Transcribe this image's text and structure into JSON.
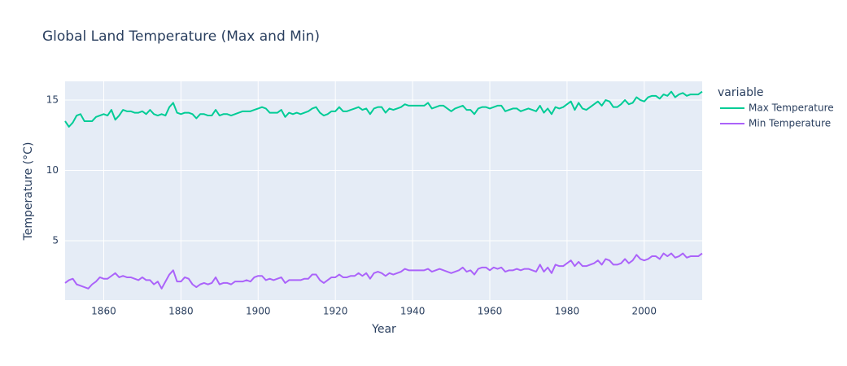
{
  "chart_data": {
    "type": "line",
    "title": "Global Land Temperature (Max and Min)",
    "x_label": "Year",
    "y_label": "Temperature (°C)",
    "legend_title": "variable",
    "x": [
      1850,
      1851,
      1852,
      1853,
      1854,
      1855,
      1856,
      1857,
      1858,
      1859,
      1860,
      1861,
      1862,
      1863,
      1864,
      1865,
      1866,
      1867,
      1868,
      1869,
      1870,
      1871,
      1872,
      1873,
      1874,
      1875,
      1876,
      1877,
      1878,
      1879,
      1880,
      1881,
      1882,
      1883,
      1884,
      1885,
      1886,
      1887,
      1888,
      1889,
      1890,
      1891,
      1892,
      1893,
      1894,
      1895,
      1896,
      1897,
      1898,
      1899,
      1900,
      1901,
      1902,
      1903,
      1904,
      1905,
      1906,
      1907,
      1908,
      1909,
      1910,
      1911,
      1912,
      1913,
      1914,
      1915,
      1916,
      1917,
      1918,
      1919,
      1920,
      1921,
      1922,
      1923,
      1924,
      1925,
      1926,
      1927,
      1928,
      1929,
      1930,
      1931,
      1932,
      1933,
      1934,
      1935,
      1936,
      1937,
      1938,
      1939,
      1940,
      1941,
      1942,
      1943,
      1944,
      1945,
      1946,
      1947,
      1948,
      1949,
      1950,
      1951,
      1952,
      1953,
      1954,
      1955,
      1956,
      1957,
      1958,
      1959,
      1960,
      1961,
      1962,
      1963,
      1964,
      1965,
      1966,
      1967,
      1968,
      1969,
      1970,
      1971,
      1972,
      1973,
      1974,
      1975,
      1976,
      1977,
      1978,
      1979,
      1980,
      1981,
      1982,
      1983,
      1984,
      1985,
      1986,
      1987,
      1988,
      1989,
      1990,
      1991,
      1992,
      1993,
      1994,
      1995,
      1996,
      1997,
      1998,
      1999,
      2000,
      2001,
      2002,
      2003,
      2004,
      2005,
      2006,
      2007,
      2008,
      2009,
      2010,
      2011,
      2012,
      2013,
      2014,
      2015
    ],
    "series": [
      {
        "name": "Max Temperature",
        "color": "#00cc96",
        "values": [
          13.5,
          13.1,
          13.4,
          13.9,
          14.0,
          13.5,
          13.5,
          13.5,
          13.8,
          13.9,
          14.0,
          13.9,
          14.3,
          13.6,
          13.9,
          14.3,
          14.2,
          14.2,
          14.1,
          14.1,
          14.2,
          14.0,
          14.3,
          14.0,
          13.9,
          14.0,
          13.9,
          14.5,
          14.8,
          14.1,
          14.0,
          14.1,
          14.1,
          14.0,
          13.7,
          14.0,
          14.0,
          13.9,
          13.9,
          14.3,
          13.9,
          14.0,
          14.0,
          13.9,
          14.0,
          14.1,
          14.2,
          14.2,
          14.2,
          14.3,
          14.4,
          14.5,
          14.4,
          14.1,
          14.1,
          14.1,
          14.3,
          13.8,
          14.1,
          14.0,
          14.1,
          14.0,
          14.1,
          14.2,
          14.4,
          14.5,
          14.1,
          13.9,
          14.0,
          14.2,
          14.2,
          14.5,
          14.2,
          14.2,
          14.3,
          14.4,
          14.5,
          14.3,
          14.4,
          14.0,
          14.4,
          14.5,
          14.5,
          14.1,
          14.4,
          14.3,
          14.4,
          14.5,
          14.7,
          14.6,
          14.6,
          14.6,
          14.6,
          14.6,
          14.8,
          14.4,
          14.5,
          14.6,
          14.6,
          14.4,
          14.2,
          14.4,
          14.5,
          14.6,
          14.3,
          14.3,
          14.0,
          14.4,
          14.5,
          14.5,
          14.4,
          14.5,
          14.6,
          14.6,
          14.2,
          14.3,
          14.4,
          14.4,
          14.2,
          14.3,
          14.4,
          14.3,
          14.2,
          14.6,
          14.1,
          14.4,
          14.0,
          14.5,
          14.4,
          14.5,
          14.7,
          14.9,
          14.3,
          14.8,
          14.4,
          14.3,
          14.5,
          14.7,
          14.9,
          14.6,
          15.0,
          14.9,
          14.5,
          14.5,
          14.7,
          15.0,
          14.7,
          14.8,
          15.2,
          15.0,
          14.9,
          15.2,
          15.3,
          15.3,
          15.1,
          15.4,
          15.3,
          15.6,
          15.2,
          15.4,
          15.5,
          15.3,
          15.4,
          15.4,
          15.4,
          15.6
        ]
      },
      {
        "name": "Min Temperature",
        "color": "#ab63fa",
        "values": [
          2.0,
          2.2,
          2.3,
          1.9,
          1.8,
          1.7,
          1.6,
          1.9,
          2.1,
          2.4,
          2.3,
          2.3,
          2.5,
          2.7,
          2.4,
          2.5,
          2.4,
          2.4,
          2.3,
          2.2,
          2.4,
          2.2,
          2.2,
          1.9,
          2.1,
          1.6,
          2.1,
          2.6,
          2.9,
          2.1,
          2.1,
          2.4,
          2.3,
          1.9,
          1.7,
          1.9,
          2.0,
          1.9,
          2.0,
          2.4,
          1.9,
          2.0,
          2.0,
          1.9,
          2.1,
          2.1,
          2.1,
          2.2,
          2.1,
          2.4,
          2.5,
          2.5,
          2.2,
          2.3,
          2.2,
          2.3,
          2.4,
          2.0,
          2.2,
          2.2,
          2.2,
          2.2,
          2.3,
          2.3,
          2.6,
          2.6,
          2.2,
          2.0,
          2.2,
          2.4,
          2.4,
          2.6,
          2.4,
          2.4,
          2.5,
          2.5,
          2.7,
          2.5,
          2.7,
          2.3,
          2.7,
          2.8,
          2.7,
          2.5,
          2.7,
          2.6,
          2.7,
          2.8,
          3.0,
          2.9,
          2.9,
          2.9,
          2.9,
          2.9,
          3.0,
          2.8,
          2.9,
          3.0,
          2.9,
          2.8,
          2.7,
          2.8,
          2.9,
          3.1,
          2.8,
          2.9,
          2.6,
          3.0,
          3.1,
          3.1,
          2.9,
          3.1,
          3.0,
          3.1,
          2.8,
          2.9,
          2.9,
          3.0,
          2.9,
          3.0,
          3.0,
          2.9,
          2.8,
          3.3,
          2.8,
          3.1,
          2.7,
          3.3,
          3.2,
          3.2,
          3.4,
          3.6,
          3.2,
          3.5,
          3.2,
          3.2,
          3.3,
          3.4,
          3.6,
          3.3,
          3.7,
          3.6,
          3.3,
          3.3,
          3.4,
          3.7,
          3.4,
          3.6,
          4.0,
          3.7,
          3.6,
          3.7,
          3.9,
          3.9,
          3.7,
          4.1,
          3.9,
          4.1,
          3.8,
          3.9,
          4.1,
          3.8,
          3.9,
          3.9,
          3.9,
          4.1
        ]
      }
    ],
    "xlim": [
      1850,
      2015
    ],
    "xticks": [
      1860,
      1880,
      1900,
      1920,
      1940,
      1960,
      1980,
      2000
    ],
    "ylim": [
      0.78,
      16.33
    ],
    "yticks": [
      5,
      10,
      15
    ],
    "grid": true
  }
}
